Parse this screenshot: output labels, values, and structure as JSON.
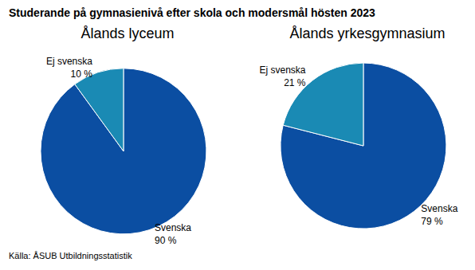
{
  "title": "Studerande på gymnasienivå efter skola och modersmål hösten 2023",
  "source": "Källa: ÅSUB Utbildningsstatistik",
  "chart_data": [
    {
      "type": "pie",
      "title": "Ålands lyceum",
      "categories": [
        "Svenska",
        "Ej svenska"
      ],
      "values": [
        90,
        10
      ],
      "value_labels": [
        "90 %",
        "10 %"
      ],
      "colors": [
        "#0b4ea2",
        "#1a8ab4"
      ],
      "data_labels": true
    },
    {
      "type": "pie",
      "title": "Ålands yrkesgymnasium",
      "categories": [
        "Svenska",
        "Ej svenska"
      ],
      "values": [
        79,
        21
      ],
      "value_labels": [
        "79 %",
        "21 %"
      ],
      "colors": [
        "#0b4ea2",
        "#1a8ab4"
      ],
      "data_labels": true
    }
  ]
}
